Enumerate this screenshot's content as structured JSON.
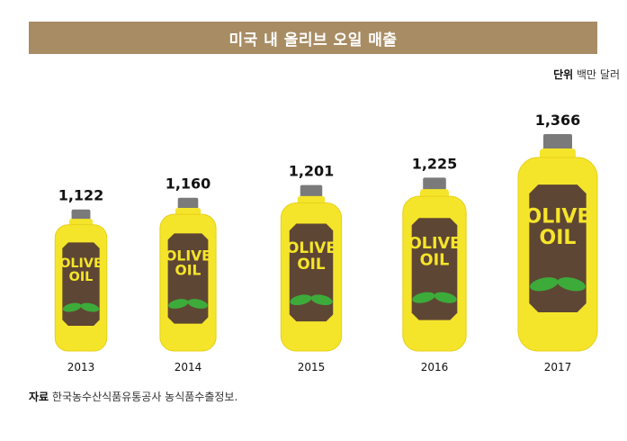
{
  "header": {
    "title": "미국 내 올리브 오일 매출",
    "unit_label": "단위",
    "unit_value": "백만 달러"
  },
  "footer": {
    "source_label": "자료",
    "source_value": "한국농수산식품유통공사 농식품수출정보."
  },
  "bottle_label": [
    "OLIVE",
    "OIL"
  ],
  "colors": {
    "title_bg": "#a88c64",
    "bottle_body": "#f5e52a",
    "bottle_outline": "#e6cf1a",
    "label_bg": "#5e4634",
    "label_text": "#f5e52a",
    "cap": "#7a7a7a",
    "leaf": "#3dab3a"
  },
  "chart_data": {
    "type": "bar",
    "categories": [
      "2013",
      "2014",
      "2015",
      "2016",
      "2017"
    ],
    "values": [
      1122,
      1160,
      1201,
      1225,
      1366
    ],
    "value_labels": [
      "1,122",
      "1,160",
      "1,201",
      "1,225",
      "1,366"
    ],
    "title": "미국 내 올리브 오일 매출",
    "unit": "백만 달러"
  }
}
